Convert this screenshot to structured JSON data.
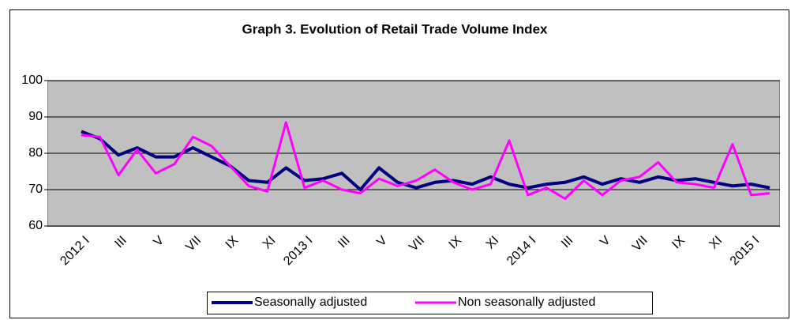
{
  "chart_data": {
    "type": "line",
    "title": "Graph 3. Evolution of Retail Trade Volume Index",
    "categories": [
      "2012 I",
      null,
      "III",
      null,
      "V",
      null,
      "VII",
      null,
      "IX",
      null,
      "XI",
      null,
      "2013 I",
      null,
      "III",
      null,
      "V",
      null,
      "VII",
      null,
      "IX",
      null,
      "XI",
      null,
      "2014 I",
      null,
      "III",
      null,
      "V",
      null,
      "VII",
      null,
      "IX",
      null,
      "XI",
      null,
      "2015 I",
      null
    ],
    "series": [
      {
        "name": "Seasonally adjusted",
        "color": "#000080",
        "values": [
          86,
          84,
          79.5,
          81.5,
          79,
          79,
          81.5,
          79,
          76.5,
          72.5,
          72,
          76,
          72.5,
          73,
          74.5,
          70,
          76,
          72,
          70.5,
          72,
          72.5,
          71.5,
          73.5,
          71.5,
          70.5,
          71.5,
          72,
          73.5,
          71.5,
          73,
          72,
          73.5,
          72.5,
          73,
          72,
          71,
          71.5,
          70.5
        ]
      },
      {
        "name": "Non seasonally adjusted",
        "color": "#ff00ff",
        "values": [
          85,
          84.5,
          74,
          81,
          74.5,
          77,
          84.5,
          82,
          76.5,
          71,
          69.5,
          88.5,
          70.5,
          72.5,
          70,
          69,
          73,
          71,
          72.5,
          75.5,
          72,
          70,
          71.5,
          83.5,
          68.5,
          70.5,
          67.5,
          72.5,
          68.5,
          72.5,
          73.5,
          77.5,
          72,
          71.5,
          70.5,
          82.5,
          68.5,
          69
        ]
      }
    ],
    "ylim": [
      60,
      100
    ],
    "yticks": [
      60,
      70,
      80,
      90,
      100
    ],
    "grid": true,
    "legend": "bottom"
  }
}
